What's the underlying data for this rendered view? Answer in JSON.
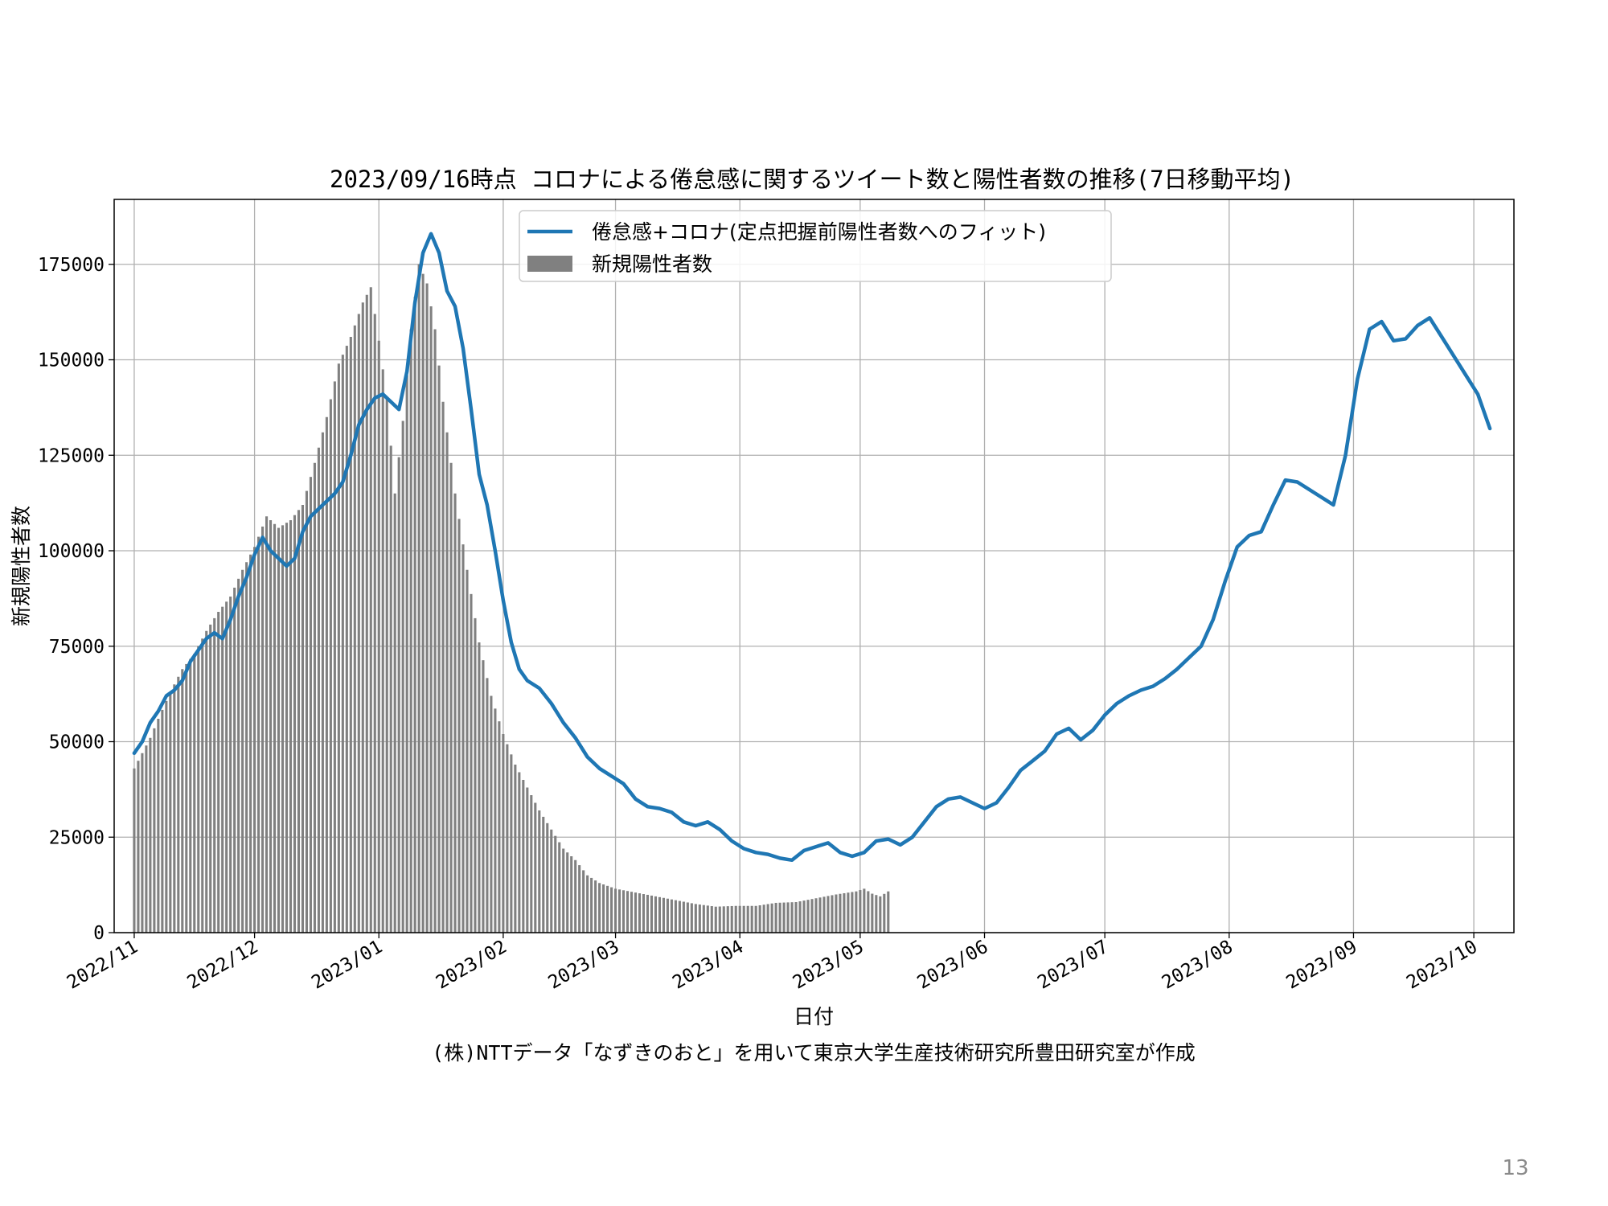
{
  "page_number": "13",
  "credit": "(株)NTTデータ「なずきのおと」を用いて東京大学生産技術研究所豊田研究室が作成",
  "chart_data": {
    "type": "bar+line",
    "title": "2023/09/16時点 コロナによる倦怠感に関するツイート数と陽性者数の推移(7日移動平均)",
    "xlabel": "日付",
    "ylabel": "新規陽性者数",
    "xlim": [
      "2022-10-27",
      "2023-10-11"
    ],
    "ylim": [
      0,
      192000
    ],
    "x_ticks": [
      "2022-11-01",
      "2022-12-01",
      "2023-01-01",
      "2023-02-01",
      "2023-03-01",
      "2023-04-01",
      "2023-05-01",
      "2023-06-01",
      "2023-07-01",
      "2023-08-01",
      "2023-09-01",
      "2023-10-01"
    ],
    "x_tick_labels": [
      "2022/11",
      "2022/12",
      "2023/01",
      "2023/02",
      "2023/03",
      "2023/04",
      "2023/05",
      "2023/06",
      "2023/07",
      "2023/08",
      "2023/09",
      "2023/10"
    ],
    "y_ticks": [
      0,
      25000,
      50000,
      75000,
      100000,
      125000,
      150000,
      175000
    ],
    "y_tick_labels": [
      "0",
      "25000",
      "50000",
      "75000",
      "100000",
      "125000",
      "150000",
      "175000"
    ],
    "grid": true,
    "legend": {
      "placement": "upper-center",
      "entries": [
        {
          "label": "倦怠感+コロナ(定点把握前陽性者数へのフィット)",
          "kind": "line",
          "color": "#1f77b4"
        },
        {
          "label": "新規陽性者数",
          "kind": "bar",
          "color": "#808080"
        }
      ]
    },
    "series": [
      {
        "name": "新規陽性者数",
        "kind": "bar",
        "color": "#808080",
        "start_date": "2022-11-01",
        "end_date": "2023-05-08",
        "points": [
          [
            "2022-11-01",
            43000
          ],
          [
            "2022-11-03",
            47000
          ],
          [
            "2022-11-05",
            51000
          ],
          [
            "2022-11-07",
            56000
          ],
          [
            "2022-11-10",
            63000
          ],
          [
            "2022-11-13",
            69000
          ],
          [
            "2022-11-16",
            73000
          ],
          [
            "2022-11-19",
            79000
          ],
          [
            "2022-11-22",
            84000
          ],
          [
            "2022-11-25",
            88000
          ],
          [
            "2022-11-28",
            95000
          ],
          [
            "2022-12-01",
            101000
          ],
          [
            "2022-12-04",
            109000
          ],
          [
            "2022-12-07",
            106000
          ],
          [
            "2022-12-10",
            108000
          ],
          [
            "2022-12-13",
            112000
          ],
          [
            "2022-12-16",
            123000
          ],
          [
            "2022-12-19",
            135000
          ],
          [
            "2022-12-22",
            149000
          ],
          [
            "2022-12-25",
            156000
          ],
          [
            "2022-12-28",
            165000
          ],
          [
            "2022-12-30",
            169000
          ],
          [
            "2023-01-01",
            155000
          ],
          [
            "2023-01-03",
            140000
          ],
          [
            "2023-01-05",
            115000
          ],
          [
            "2023-01-07",
            134000
          ],
          [
            "2023-01-09",
            158000
          ],
          [
            "2023-01-11",
            175000
          ],
          [
            "2023-01-13",
            170000
          ],
          [
            "2023-01-15",
            158000
          ],
          [
            "2023-01-17",
            139000
          ],
          [
            "2023-01-20",
            115000
          ],
          [
            "2023-01-23",
            95000
          ],
          [
            "2023-01-26",
            76000
          ],
          [
            "2023-01-29",
            62000
          ],
          [
            "2023-02-01",
            52000
          ],
          [
            "2023-02-04",
            44000
          ],
          [
            "2023-02-07",
            38000
          ],
          [
            "2023-02-10",
            32000
          ],
          [
            "2023-02-13",
            27000
          ],
          [
            "2023-02-16",
            22000
          ],
          [
            "2023-02-19",
            19000
          ],
          [
            "2023-02-22",
            15000
          ],
          [
            "2023-02-25",
            13000
          ],
          [
            "2023-03-01",
            11500
          ],
          [
            "2023-03-06",
            10500
          ],
          [
            "2023-03-11",
            9500
          ],
          [
            "2023-03-16",
            8500
          ],
          [
            "2023-03-21",
            7500
          ],
          [
            "2023-03-26",
            6800
          ],
          [
            "2023-03-31",
            7000
          ],
          [
            "2023-04-05",
            7000
          ],
          [
            "2023-04-10",
            7800
          ],
          [
            "2023-04-15",
            8000
          ],
          [
            "2023-04-20",
            9000
          ],
          [
            "2023-04-25",
            10000
          ],
          [
            "2023-04-30",
            10800
          ],
          [
            "2023-05-02",
            11500
          ],
          [
            "2023-05-04",
            10200
          ],
          [
            "2023-05-06",
            9500
          ],
          [
            "2023-05-08",
            10800
          ]
        ]
      },
      {
        "name": "倦怠感+コロナ(定点把握前陽性者数へのフィット)",
        "kind": "line",
        "color": "#1f77b4",
        "points": [
          [
            "2022-11-01",
            47000
          ],
          [
            "2022-11-03",
            50000
          ],
          [
            "2022-11-05",
            55000
          ],
          [
            "2022-11-07",
            58000
          ],
          [
            "2022-11-09",
            62000
          ],
          [
            "2022-11-11",
            63500
          ],
          [
            "2022-11-13",
            66000
          ],
          [
            "2022-11-15",
            71000
          ],
          [
            "2022-11-17",
            74000
          ],
          [
            "2022-11-19",
            77000
          ],
          [
            "2022-11-21",
            78500
          ],
          [
            "2022-11-23",
            77000
          ],
          [
            "2022-11-25",
            82000
          ],
          [
            "2022-11-27",
            88000
          ],
          [
            "2022-11-29",
            93000
          ],
          [
            "2022-12-01",
            99000
          ],
          [
            "2022-12-03",
            103500
          ],
          [
            "2022-12-05",
            100000
          ],
          [
            "2022-12-07",
            98000
          ],
          [
            "2022-12-09",
            96000
          ],
          [
            "2022-12-11",
            98000
          ],
          [
            "2022-12-13",
            105000
          ],
          [
            "2022-12-15",
            109000
          ],
          [
            "2022-12-17",
            111000
          ],
          [
            "2022-12-19",
            113000
          ],
          [
            "2022-12-21",
            115000
          ],
          [
            "2022-12-23",
            118000
          ],
          [
            "2022-12-25",
            125000
          ],
          [
            "2022-12-27",
            133000
          ],
          [
            "2022-12-29",
            137000
          ],
          [
            "2022-12-31",
            140000
          ],
          [
            "2023-01-02",
            141000
          ],
          [
            "2023-01-04",
            139000
          ],
          [
            "2023-01-06",
            137000
          ],
          [
            "2023-01-08",
            147000
          ],
          [
            "2023-01-10",
            165000
          ],
          [
            "2023-01-12",
            178000
          ],
          [
            "2023-01-14",
            183000
          ],
          [
            "2023-01-16",
            178000
          ],
          [
            "2023-01-18",
            168000
          ],
          [
            "2023-01-20",
            164000
          ],
          [
            "2023-01-22",
            153000
          ],
          [
            "2023-01-24",
            137000
          ],
          [
            "2023-01-26",
            120000
          ],
          [
            "2023-01-28",
            112000
          ],
          [
            "2023-01-30",
            100000
          ],
          [
            "2023-02-01",
            87000
          ],
          [
            "2023-02-03",
            76000
          ],
          [
            "2023-02-05",
            69000
          ],
          [
            "2023-02-07",
            66000
          ],
          [
            "2023-02-10",
            64000
          ],
          [
            "2023-02-13",
            60000
          ],
          [
            "2023-02-16",
            55000
          ],
          [
            "2023-02-19",
            51000
          ],
          [
            "2023-02-22",
            46000
          ],
          [
            "2023-02-25",
            43000
          ],
          [
            "2023-02-28",
            41000
          ],
          [
            "2023-03-03",
            39000
          ],
          [
            "2023-03-06",
            35000
          ],
          [
            "2023-03-09",
            33000
          ],
          [
            "2023-03-12",
            32500
          ],
          [
            "2023-03-15",
            31500
          ],
          [
            "2023-03-18",
            29000
          ],
          [
            "2023-03-21",
            28000
          ],
          [
            "2023-03-24",
            29000
          ],
          [
            "2023-03-27",
            27000
          ],
          [
            "2023-03-30",
            24000
          ],
          [
            "2023-04-02",
            22000
          ],
          [
            "2023-04-05",
            21000
          ],
          [
            "2023-04-08",
            20500
          ],
          [
            "2023-04-11",
            19500
          ],
          [
            "2023-04-14",
            19000
          ],
          [
            "2023-04-17",
            21500
          ],
          [
            "2023-04-20",
            22500
          ],
          [
            "2023-04-23",
            23500
          ],
          [
            "2023-04-26",
            21000
          ],
          [
            "2023-04-29",
            20000
          ],
          [
            "2023-05-02",
            21000
          ],
          [
            "2023-05-05",
            24000
          ],
          [
            "2023-05-08",
            24500
          ],
          [
            "2023-05-11",
            23000
          ],
          [
            "2023-05-14",
            25000
          ],
          [
            "2023-05-17",
            29000
          ],
          [
            "2023-05-20",
            33000
          ],
          [
            "2023-05-23",
            35000
          ],
          [
            "2023-05-26",
            35500
          ],
          [
            "2023-05-29",
            34000
          ],
          [
            "2023-06-01",
            32500
          ],
          [
            "2023-06-04",
            34000
          ],
          [
            "2023-06-07",
            38000
          ],
          [
            "2023-06-10",
            42500
          ],
          [
            "2023-06-13",
            45000
          ],
          [
            "2023-06-16",
            47500
          ],
          [
            "2023-06-19",
            52000
          ],
          [
            "2023-06-22",
            53500
          ],
          [
            "2023-06-25",
            50500
          ],
          [
            "2023-06-28",
            53000
          ],
          [
            "2023-07-01",
            57000
          ],
          [
            "2023-07-04",
            60000
          ],
          [
            "2023-07-07",
            62000
          ],
          [
            "2023-07-10",
            63500
          ],
          [
            "2023-07-13",
            64500
          ],
          [
            "2023-07-16",
            66500
          ],
          [
            "2023-07-19",
            69000
          ],
          [
            "2023-07-22",
            72000
          ],
          [
            "2023-07-25",
            75000
          ],
          [
            "2023-07-28",
            82000
          ],
          [
            "2023-07-31",
            92000
          ],
          [
            "2023-08-03",
            101000
          ],
          [
            "2023-08-06",
            104000
          ],
          [
            "2023-08-09",
            105000
          ],
          [
            "2023-08-12",
            112000
          ],
          [
            "2023-08-15",
            118500
          ],
          [
            "2023-08-18",
            118000
          ],
          [
            "2023-08-21",
            116000
          ],
          [
            "2023-08-24",
            114000
          ],
          [
            "2023-08-27",
            112000
          ],
          [
            "2023-08-30",
            125000
          ],
          [
            "2023-09-02",
            145000
          ],
          [
            "2023-09-05",
            158000
          ],
          [
            "2023-09-08",
            160000
          ],
          [
            "2023-09-11",
            155000
          ],
          [
            "2023-09-14",
            155500
          ],
          [
            "2023-09-17",
            159000
          ],
          [
            "2023-09-20",
            161000
          ],
          [
            "2023-09-23",
            156000
          ],
          [
            "2023-09-26",
            151000
          ],
          [
            "2023-09-29",
            146000
          ],
          [
            "2023-10-02",
            141000
          ],
          [
            "2023-10-05",
            132000
          ]
        ]
      }
    ]
  }
}
